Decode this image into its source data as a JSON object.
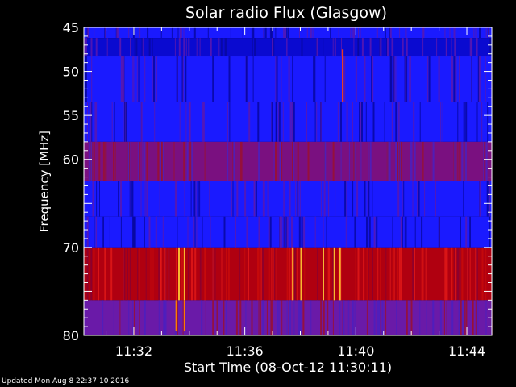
{
  "chart_data": {
    "type": "heatmap",
    "title": "Solar radio Flux (Glasgow)",
    "xlabel": "Start Time (08-Oct-12 11:30:11)",
    "ylabel": "Frequency [MHz]",
    "x_ticks": [
      "11:32",
      "11:36",
      "11:40",
      "11:44"
    ],
    "x_tick_minutes": [
      2,
      6,
      10,
      14
    ],
    "xlim_minutes": [
      0.2,
      14.9
    ],
    "ylim": [
      45,
      80
    ],
    "y_inverted": true,
    "y_ticks": [
      45,
      50,
      55,
      60,
      70,
      80
    ],
    "y_ticks_unlabeled": [
      65,
      75
    ],
    "bands": [
      {
        "from": 45,
        "to": 46.2,
        "level": "blue"
      },
      {
        "from": 46.2,
        "to": 48.3,
        "level": "blue-dark"
      },
      {
        "from": 48.3,
        "to": 53.5,
        "level": "blue"
      },
      {
        "from": 53.5,
        "to": 58,
        "level": "blue"
      },
      {
        "from": 58,
        "to": 62.5,
        "level": "purple-red"
      },
      {
        "from": 62.5,
        "to": 66.5,
        "level": "blue"
      },
      {
        "from": 66.5,
        "to": 70,
        "level": "blue"
      },
      {
        "from": 70,
        "to": 76,
        "level": "red"
      },
      {
        "from": 76,
        "to": 80,
        "level": "purple"
      }
    ],
    "bright_bursts_minutes": [
      3.6,
      3.8,
      7.7,
      8.0,
      8.8,
      9.2,
      9.4
    ]
  },
  "footer": {
    "updated": "Updated Mon Aug 8 22:37:10 2016"
  },
  "colors": {
    "background": "#000000",
    "blue": "#1a1aff",
    "blue_dark": "#0a0ad0",
    "purple": "#6a1aa8",
    "purple_red": "#7a1080",
    "red": "#b00010",
    "bright": "#ffcc33"
  }
}
